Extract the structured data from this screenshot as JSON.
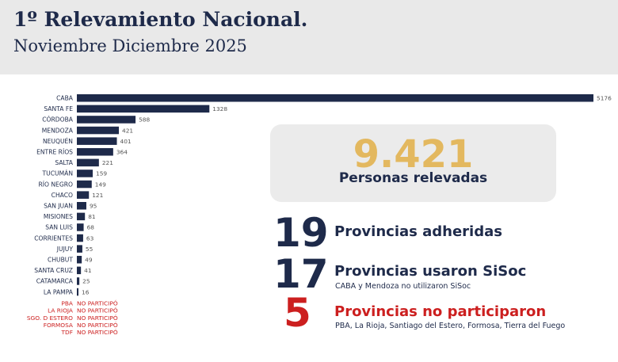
{
  "header": {
    "title": "1º Relevamiento Nacional.",
    "subtitle": "Noviembre Diciembre 2025"
  },
  "colors": {
    "bar": "#1e2a4a",
    "label": "#1e2a4a",
    "value": "#555555",
    "not_participated": "#cc1f1f",
    "total_number": "#e3b85f"
  },
  "chart_data": {
    "type": "bar",
    "orientation": "horizontal",
    "categories": [
      "CABA",
      "SANTA FE",
      "CÓRDOBA",
      "MENDOZA",
      "NEUQUÉN",
      "ENTRE RÍOS",
      "SALTA",
      "TUCUMÁN",
      "RÍO NEGRO",
      "CHACO",
      "SAN JUAN",
      "MISIONES",
      "SAN LUIS",
      "CORRIENTES",
      "JUJUY",
      "CHUBUT",
      "SANTA CRUZ",
      "CATAMARCA",
      "LA PAMPA"
    ],
    "values": [
      5176,
      1328,
      588,
      421,
      401,
      364,
      221,
      159,
      149,
      121,
      95,
      81,
      68,
      63,
      55,
      49,
      41,
      25,
      16
    ],
    "not_participated": {
      "categories": [
        "PBA",
        "LA RIOJA",
        "SGO. D ESTERO",
        "FORMOSA",
        "TDF"
      ],
      "label": "NO PARTICIPÓ"
    },
    "xlim": [
      0,
      5176
    ],
    "grid": false,
    "legend": "none"
  },
  "total": {
    "number": "9.421",
    "label": "Personas relevadas"
  },
  "stats": [
    {
      "number": "19",
      "label": "Provincias adheridas",
      "note": ""
    },
    {
      "number": "17",
      "label": "Provincias usaron SiSoc",
      "note": "CABA y Mendoza no utilizaron SiSoc"
    },
    {
      "number": "5",
      "label": "Provincias no participaron",
      "note": "PBA, La Rioja, Santiago del Estero, Formosa, Tierra del Fuego"
    }
  ]
}
